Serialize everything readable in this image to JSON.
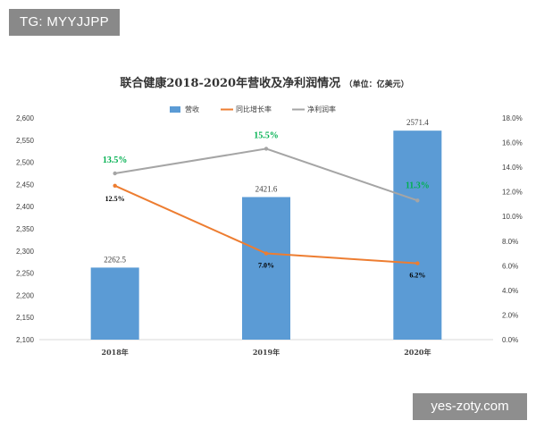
{
  "badge": {
    "text": "TG: MYYJJPP"
  },
  "watermark": {
    "text": "yes-zoty.com"
  },
  "chart_data": {
    "type": "bar",
    "title": "联合健康2018-2020年营收及净利润情况",
    "unit": "（单位：亿美元）",
    "categories": [
      "2018年",
      "2019年",
      "2020年"
    ],
    "series": [
      {
        "name": "营收",
        "kind": "bar",
        "axis": "left",
        "color": "#5b9bd5",
        "values": [
          2262.5,
          2421.6,
          2571.4
        ],
        "labels": [
          "2262.5",
          "2421.6",
          "2571.4"
        ]
      },
      {
        "name": "同比增长率",
        "kind": "line",
        "axis": "right",
        "color": "#ed7d31",
        "values": [
          12.5,
          7.0,
          6.2
        ],
        "labels": [
          "12.5%",
          "7.0%",
          "6.2%"
        ]
      },
      {
        "name": "净利润率",
        "kind": "line",
        "axis": "right",
        "color": "#a5a5a5",
        "values": [
          13.5,
          15.5,
          11.3
        ],
        "labels": [
          "13.5%",
          "15.5%",
          "11.3%"
        ],
        "label_color": "#00b050"
      }
    ],
    "left_axis": {
      "min": 2100,
      "max": 2600,
      "ticks": [
        "2,100",
        "2,150",
        "2,200",
        "2,250",
        "2,300",
        "2,350",
        "2,400",
        "2,450",
        "2,500",
        "2,550",
        "2,600"
      ]
    },
    "right_axis": {
      "min": 0,
      "max": 18,
      "ticks": [
        "0.0%",
        "2.0%",
        "4.0%",
        "6.0%",
        "8.0%",
        "10.0%",
        "12.0%",
        "14.0%",
        "16.0%",
        "18.0%"
      ]
    },
    "legend_position": "top",
    "grid": false
  }
}
